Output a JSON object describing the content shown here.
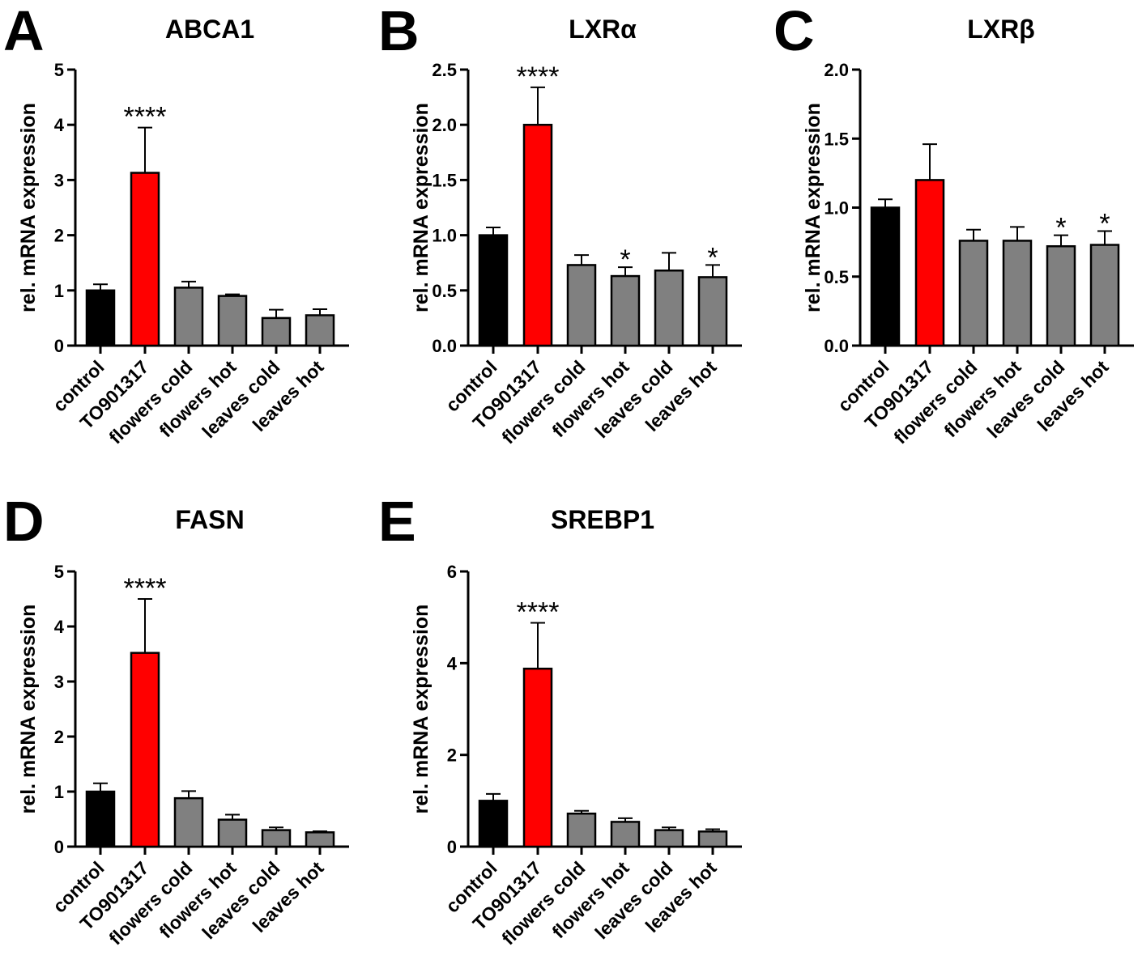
{
  "colors": {
    "control": "#000000",
    "TO901317": "#ff0000",
    "treatment": "#808080",
    "axis": "#000000"
  },
  "chart_data": [
    {
      "panel": "A",
      "type": "bar",
      "title": "ABCA1",
      "ylabel": "rel. mRNA expression",
      "categories": [
        "control",
        "TO901317",
        "flowers cold",
        "flowers hot",
        "leaves cold",
        "leaves hot"
      ],
      "values": [
        1.0,
        3.13,
        1.05,
        0.9,
        0.5,
        0.55
      ],
      "errors": [
        0.11,
        0.82,
        0.11,
        0.03,
        0.15,
        0.11
      ],
      "significance": [
        "",
        "****",
        "",
        "",
        "",
        ""
      ],
      "ylim": [
        0,
        5
      ],
      "yticks": [
        "0",
        "1",
        "2",
        "3",
        "4",
        "5"
      ],
      "bar_colors": [
        "control",
        "TO901317",
        "treatment",
        "treatment",
        "treatment",
        "treatment"
      ]
    },
    {
      "panel": "B",
      "type": "bar",
      "title": "LXRα",
      "ylabel": "rel. mRNA expression",
      "categories": [
        "control",
        "TO901317",
        "flowers cold",
        "flowers hot",
        "leaves cold",
        "leaves hot"
      ],
      "values": [
        1.0,
        2.0,
        0.73,
        0.63,
        0.68,
        0.62
      ],
      "errors": [
        0.07,
        0.34,
        0.09,
        0.08,
        0.16,
        0.11
      ],
      "significance": [
        "",
        "****",
        "",
        "*",
        "",
        "*"
      ],
      "ylim": [
        0,
        2.5
      ],
      "yticks": [
        "0.0",
        "0.5",
        "1.0",
        "1.5",
        "2.0",
        "2.5"
      ],
      "bar_colors": [
        "control",
        "TO901317",
        "treatment",
        "treatment",
        "treatment",
        "treatment"
      ]
    },
    {
      "panel": "C",
      "type": "bar",
      "title": "LXRβ",
      "ylabel": "rel. mRNA expression",
      "categories": [
        "control",
        "TO901317",
        "flowers cold",
        "flowers hot",
        "leaves cold",
        "leaves hot"
      ],
      "values": [
        1.0,
        1.2,
        0.76,
        0.76,
        0.72,
        0.73
      ],
      "errors": [
        0.06,
        0.26,
        0.08,
        0.1,
        0.08,
        0.1
      ],
      "significance": [
        "",
        "",
        "",
        "",
        "*",
        "*"
      ],
      "ylim": [
        0,
        2.0
      ],
      "yticks": [
        "0.0",
        "0.5",
        "1.0",
        "1.5",
        "2.0"
      ],
      "bar_colors": [
        "control",
        "TO901317",
        "treatment",
        "treatment",
        "treatment",
        "treatment"
      ]
    },
    {
      "panel": "D",
      "type": "bar",
      "title": "FASN",
      "ylabel": "rel. mRNA expression",
      "categories": [
        "control",
        "TO901317",
        "flowers cold",
        "flowers hot",
        "leaves cold",
        "leaves hot"
      ],
      "values": [
        1.0,
        3.52,
        0.88,
        0.49,
        0.3,
        0.26
      ],
      "errors": [
        0.15,
        0.98,
        0.13,
        0.09,
        0.05,
        0.02
      ],
      "significance": [
        "",
        "****",
        "",
        "",
        "",
        ""
      ],
      "ylim": [
        0,
        5
      ],
      "yticks": [
        "0",
        "1",
        "2",
        "3",
        "4",
        "5"
      ],
      "bar_colors": [
        "control",
        "TO901317",
        "treatment",
        "treatment",
        "treatment",
        "treatment"
      ]
    },
    {
      "panel": "E",
      "type": "bar",
      "title": "SREBP1",
      "ylabel": "rel. mRNA expression",
      "categories": [
        "control",
        "TO901317",
        "flowers cold",
        "flowers hot",
        "leaves cold",
        "leaves hot"
      ],
      "values": [
        1.0,
        3.88,
        0.72,
        0.54,
        0.36,
        0.33
      ],
      "errors": [
        0.15,
        1.0,
        0.06,
        0.08,
        0.06,
        0.05
      ],
      "significance": [
        "",
        "****",
        "",
        "",
        "",
        ""
      ],
      "ylim": [
        0,
        6
      ],
      "yticks": [
        "0",
        "2",
        "4",
        "6"
      ],
      "bar_colors": [
        "control",
        "TO901317",
        "treatment",
        "treatment",
        "treatment",
        "treatment"
      ]
    }
  ]
}
